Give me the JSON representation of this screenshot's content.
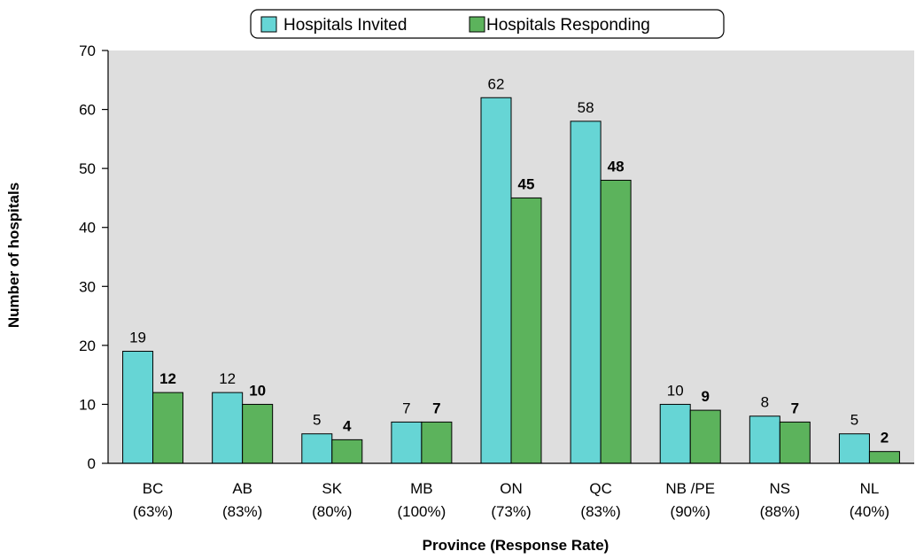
{
  "chart_data": {
    "type": "bar",
    "categories": [
      {
        "line1": "BC",
        "line2": "(63%)"
      },
      {
        "line1": "AB",
        "line2": "(83%)"
      },
      {
        "line1": "SK",
        "line2": "(80%)"
      },
      {
        "line1": "MB",
        "line2": "(100%)"
      },
      {
        "line1": "ON",
        "line2": "(73%)"
      },
      {
        "line1": "QC",
        "line2": "(83%)"
      },
      {
        "line1": "NB /PE",
        "line2": "(90%)"
      },
      {
        "line1": "NS",
        "line2": "(88%)"
      },
      {
        "line1": "NL",
        "line2": "(40%)"
      }
    ],
    "series": [
      {
        "name": "Hospitals Invited",
        "color": "#66d5d5",
        "label_weight": "normal",
        "values": [
          19,
          12,
          5,
          7,
          62,
          58,
          10,
          8,
          5
        ]
      },
      {
        "name": "Hospitals Responding",
        "color": "#5cb35c",
        "label_weight": "bold",
        "values": [
          12,
          10,
          4,
          7,
          45,
          48,
          9,
          7,
          2
        ]
      }
    ],
    "xlabel": "Province (Response Rate)",
    "ylabel": "Number of hospitals",
    "ylim": [
      0,
      70
    ],
    "yticks": [
      0,
      10,
      20,
      30,
      40,
      50,
      60,
      70
    ],
    "grid": false,
    "plot_background": "#dedede",
    "legend_position": "top-center"
  }
}
